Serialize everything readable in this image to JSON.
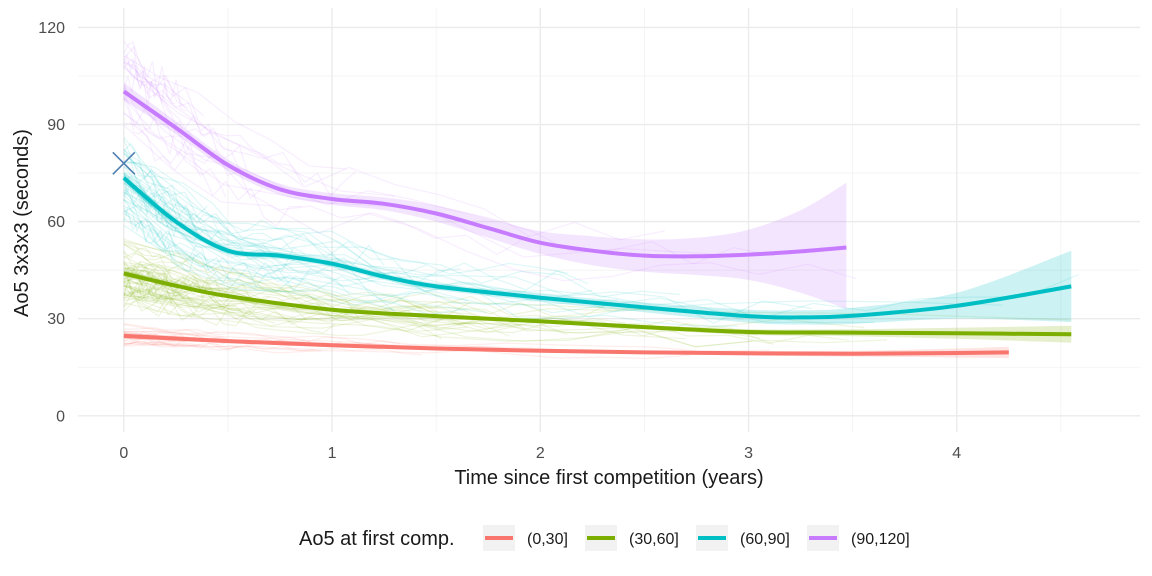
{
  "chart_data": {
    "type": "line",
    "title": "",
    "xlabel": "Time since first competition (years)",
    "ylabel": "Ao5 3x3x3 (seconds)",
    "xlim": [
      -0.22,
      4.88
    ],
    "ylim": [
      -5,
      126
    ],
    "x_ticks": [
      0,
      1,
      2,
      3,
      4
    ],
    "y_ticks": [
      0,
      30,
      60,
      90,
      120
    ],
    "x_tick_labels": [
      "0",
      "1",
      "2",
      "3",
      "4"
    ],
    "y_tick_labels": [
      "0",
      "30",
      "60",
      "90",
      "120"
    ],
    "grid": true,
    "legend": {
      "title": "Ao5 at first comp.",
      "position": "bottom",
      "entries": [
        "(0,30]",
        "(30,60]",
        "(60,90]",
        "(90,120]"
      ]
    },
    "colors": {
      "(0,30]": "#F8766D",
      "(30,60]": "#7CAE00",
      "(60,90]": "#00BFC4",
      "(90,120]": "#C77CFF"
    },
    "series": [
      {
        "name": "(0,30]",
        "x": [
          0,
          0.5,
          1,
          1.5,
          2,
          2.5,
          3,
          3.5,
          4,
          4.25
        ],
        "values": [
          24.7,
          23.1,
          21.8,
          20.8,
          20.1,
          19.6,
          19.3,
          19.2,
          19.4,
          19.6
        ],
        "ci_lower": [
          23.7,
          22.5,
          21.3,
          20.4,
          19.7,
          19.1,
          18.6,
          18.3,
          18.0,
          17.8
        ],
        "ci_upper": [
          25.7,
          23.7,
          22.3,
          21.2,
          20.5,
          20.1,
          20.0,
          20.1,
          20.8,
          21.4
        ]
      },
      {
        "name": "(30,60]",
        "x": [
          0,
          0.25,
          0.5,
          1,
          1.5,
          2,
          2.5,
          3,
          3.5,
          4,
          4.55
        ],
        "values": [
          44.0,
          40.2,
          37.0,
          32.8,
          30.8,
          29.2,
          27.4,
          25.9,
          25.7,
          25.5,
          25.2
        ],
        "ci_lower": [
          43.0,
          39.5,
          36.4,
          32.3,
          30.3,
          28.6,
          26.7,
          25.0,
          24.6,
          23.8,
          22.6
        ],
        "ci_upper": [
          45.0,
          40.9,
          37.6,
          33.3,
          31.3,
          29.8,
          28.1,
          26.8,
          26.8,
          27.2,
          27.8
        ]
      },
      {
        "name": "(60,90]",
        "x": [
          0,
          0.25,
          0.5,
          0.75,
          1,
          1.25,
          1.5,
          2,
          2.5,
          3,
          3.25,
          3.5,
          4,
          4.55
        ],
        "values": [
          73.5,
          60.0,
          51.0,
          49.5,
          47.0,
          43.0,
          40.0,
          36.5,
          33.5,
          30.8,
          30.4,
          30.9,
          34.0,
          40.0
        ],
        "ci_lower": [
          71.8,
          58.8,
          50.0,
          48.5,
          46.0,
          42.0,
          39.0,
          35.3,
          32.0,
          28.8,
          28.2,
          28.4,
          30.0,
          29.0
        ],
        "ci_upper": [
          75.2,
          61.2,
          52.0,
          50.5,
          48.0,
          44.0,
          41.0,
          37.7,
          35.0,
          32.8,
          32.6,
          33.4,
          38.0,
          51.0
        ]
      },
      {
        "name": "(90,120]",
        "x": [
          0,
          0.25,
          0.5,
          0.75,
          1,
          1.25,
          1.5,
          1.75,
          2,
          2.25,
          2.5,
          2.75,
          3,
          3.25,
          3.47
        ],
        "values": [
          100.2,
          89.0,
          77.5,
          70.0,
          67.0,
          65.5,
          62.5,
          58.0,
          53.5,
          51.0,
          49.5,
          49.3,
          49.8,
          50.8,
          52.0
        ],
        "ci_lower": [
          97.5,
          87.0,
          75.8,
          68.3,
          65.2,
          63.5,
          60.0,
          55.0,
          50.0,
          46.5,
          44.5,
          43.5,
          42.0,
          38.0,
          33.0
        ],
        "ci_upper": [
          102.9,
          91.0,
          79.2,
          71.7,
          68.8,
          67.5,
          65.0,
          61.0,
          57.0,
          55.5,
          54.5,
          55.0,
          57.5,
          63.5,
          72.0
        ]
      }
    ],
    "annotations": [
      {
        "type": "x-marker",
        "x": 0,
        "y": 78,
        "color": "#4f7fae"
      }
    ]
  }
}
